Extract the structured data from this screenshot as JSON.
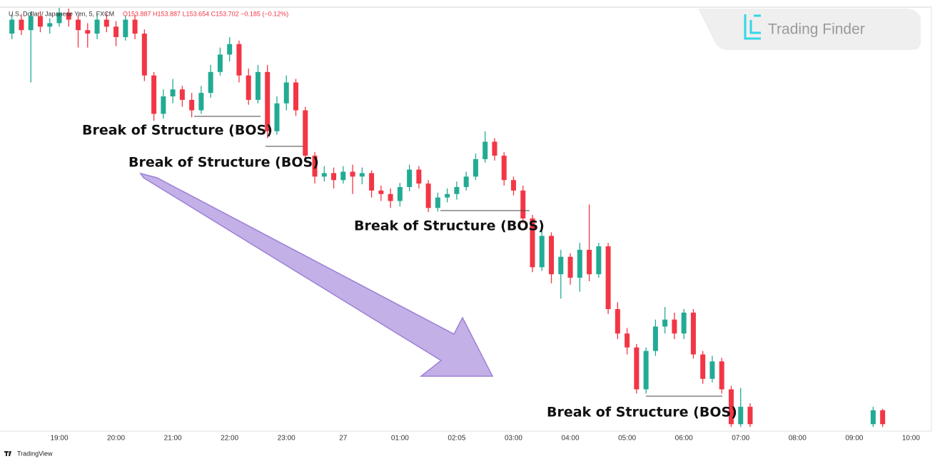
{
  "chart_data": {
    "type": "candlestick",
    "header": {
      "symbol": "U.S. Dollar / Japanese Yen, 5, FXCM",
      "ohlc": "O153.887 H153.887 L153.654 C153.702 −0.185 (−0.12%)"
    },
    "logo": "Trading Finder",
    "footer": "TradingView",
    "up_color": "#22ab94",
    "down_color": "#f23645",
    "ylim": [
      153.69,
      154.3
    ],
    "categories": [
      null,
      null,
      null,
      null,
      null,
      "19:00",
      null,
      null,
      null,
      null,
      null,
      "20:00",
      null,
      null,
      null,
      null,
      null,
      "21:00",
      null,
      null,
      null,
      null,
      null,
      "22:00",
      null,
      null,
      null,
      null,
      null,
      "23:00",
      null,
      null,
      null,
      null,
      null,
      "27",
      null,
      null,
      null,
      null,
      null,
      "01:00",
      null,
      null,
      null,
      null,
      null,
      "02:05",
      null,
      null,
      null,
      null,
      null,
      "03:00",
      null,
      null,
      null,
      null,
      null,
      "04:00",
      null,
      null,
      null,
      null,
      null,
      "05:00",
      null,
      null,
      null,
      null,
      null,
      "06:00",
      null,
      null,
      null,
      null,
      null,
      "07:00",
      null,
      null,
      null,
      null,
      null,
      "08:00",
      null,
      null,
      null,
      null,
      null,
      "09:00",
      null,
      null,
      null,
      null,
      null,
      "10:00"
    ],
    "open": [
      154.26,
      154.28,
      154.265,
      154.285,
      154.27,
      154.275,
      154.29,
      154.28,
      154.265,
      154.26,
      154.28,
      154.27,
      154.255,
      154.28,
      154.26,
      154.2,
      154.145,
      154.17,
      154.18,
      154.165,
      154.15,
      154.175,
      154.205,
      154.23,
      154.245,
      154.2,
      154.165,
      154.205,
      154.12,
      154.16,
      154.19,
      154.15,
      154.085,
      154.055,
      154.06,
      154.05,
      154.062,
      154.055,
      154.06,
      154.035,
      154.03,
      154.02,
      154.04,
      154.065,
      154.045,
      154.01,
      154.025,
      154.03,
      154.04,
      154.055,
      154.08,
      154.105,
      154.085,
      154.05,
      154.035,
      153.995,
      153.925,
      153.97,
      153.915,
      153.94,
      153.91,
      153.95,
      153.915,
      153.955,
      153.865,
      153.83,
      153.81,
      153.75,
      153.805,
      153.84,
      153.85,
      153.83,
      153.86,
      153.8,
      153.765,
      153.79,
      153.75,
      153.7,
      153.725,
      null,
      null,
      null,
      null,
      null,
      null,
      null,
      null,
      null,
      null,
      null,
      null,
      153.7,
      153.72,
      null,
      null,
      null
    ],
    "high": [
      154.288,
      154.288,
      154.292,
      154.292,
      154.282,
      154.297,
      154.296,
      154.286,
      154.275,
      154.288,
      154.29,
      154.278,
      154.286,
      154.286,
      154.266,
      154.205,
      154.18,
      154.195,
      154.185,
      154.175,
      154.185,
      154.215,
      154.24,
      154.255,
      154.25,
      154.21,
      154.215,
      154.215,
      154.17,
      154.2,
      154.195,
      154.155,
      154.09,
      154.07,
      154.068,
      154.07,
      154.072,
      154.068,
      154.064,
      154.042,
      154.038,
      154.046,
      154.072,
      154.07,
      154.05,
      154.032,
      154.038,
      154.048,
      154.062,
      154.088,
      154.12,
      154.11,
      154.09,
      154.055,
      154.042,
      154,
      153.98,
      153.975,
      153.95,
      153.945,
      153.96,
      154.015,
      153.96,
      153.96,
      153.875,
      153.838,
      153.815,
      153.81,
      153.85,
      153.868,
      153.86,
      153.865,
      153.865,
      153.805,
      153.798,
      153.795,
      153.755,
      153.752,
      153.73,
      null,
      null,
      null,
      null,
      null,
      null,
      null,
      null,
      null,
      null,
      null,
      null,
      153.725,
      153.722,
      null,
      null,
      null
    ],
    "low": [
      154.252,
      154.258,
      154.19,
      154.262,
      154.26,
      154.27,
      154.27,
      154.24,
      154.24,
      154.252,
      154.262,
      154.242,
      154.25,
      154.252,
      154.192,
      154.135,
      154.138,
      154.16,
      154.155,
      154.14,
      154.145,
      154.168,
      154.2,
      154.22,
      154.19,
      154.158,
      154.16,
      154.11,
      154.115,
      154.15,
      154.142,
      154.078,
      154.045,
      154.048,
      154.038,
      154.045,
      154.03,
      154.044,
      154.025,
      154.02,
      154.01,
      154.012,
      154.034,
      154.038,
      154.004,
      154.005,
      154.018,
      154.022,
      154.035,
      154.05,
      154.075,
      154.078,
      154.042,
      154.028,
      153.988,
      153.918,
      153.92,
      153.902,
      153.88,
      153.9,
      153.89,
      153.905,
      153.91,
      153.858,
      153.822,
      153.8,
      153.744,
      153.744,
      153.798,
      153.83,
      153.822,
      153.822,
      153.794,
      153.758,
      153.76,
      153.744,
      153.696,
      153.696,
      153.696,
      null,
      null,
      null,
      null,
      null,
      null,
      null,
      null,
      null,
      null,
      null,
      null,
      153.696,
      153.696,
      null,
      null,
      null
    ],
    "close": [
      154.28,
      154.265,
      154.285,
      154.27,
      154.275,
      154.29,
      154.28,
      154.265,
      154.26,
      154.28,
      154.27,
      154.255,
      154.28,
      154.26,
      154.2,
      154.145,
      154.17,
      154.18,
      154.165,
      154.15,
      154.175,
      154.205,
      154.23,
      154.245,
      154.2,
      154.165,
      154.205,
      154.12,
      154.16,
      154.19,
      154.15,
      154.085,
      154.055,
      154.06,
      154.05,
      154.062,
      154.055,
      154.06,
      154.035,
      154.03,
      154.02,
      154.04,
      154.065,
      154.045,
      154.01,
      154.025,
      154.03,
      154.04,
      154.055,
      154.08,
      154.105,
      154.085,
      154.05,
      154.035,
      153.995,
      153.925,
      153.97,
      153.915,
      153.94,
      153.91,
      153.95,
      153.915,
      153.955,
      153.865,
      153.83,
      153.81,
      153.75,
      153.805,
      153.84,
      153.85,
      153.83,
      153.86,
      153.8,
      153.765,
      153.79,
      153.75,
      153.7,
      153.725,
      153.7,
      null,
      null,
      null,
      null,
      null,
      null,
      null,
      null,
      null,
      null,
      null,
      null,
      153.72,
      153.7,
      null,
      null,
      null
    ],
    "annotations": [
      "Break of Structure (BOS)",
      "Break of Structure (BOS)",
      "Break of Structure (BOS)",
      "Break of Structure (BOS)"
    ]
  }
}
